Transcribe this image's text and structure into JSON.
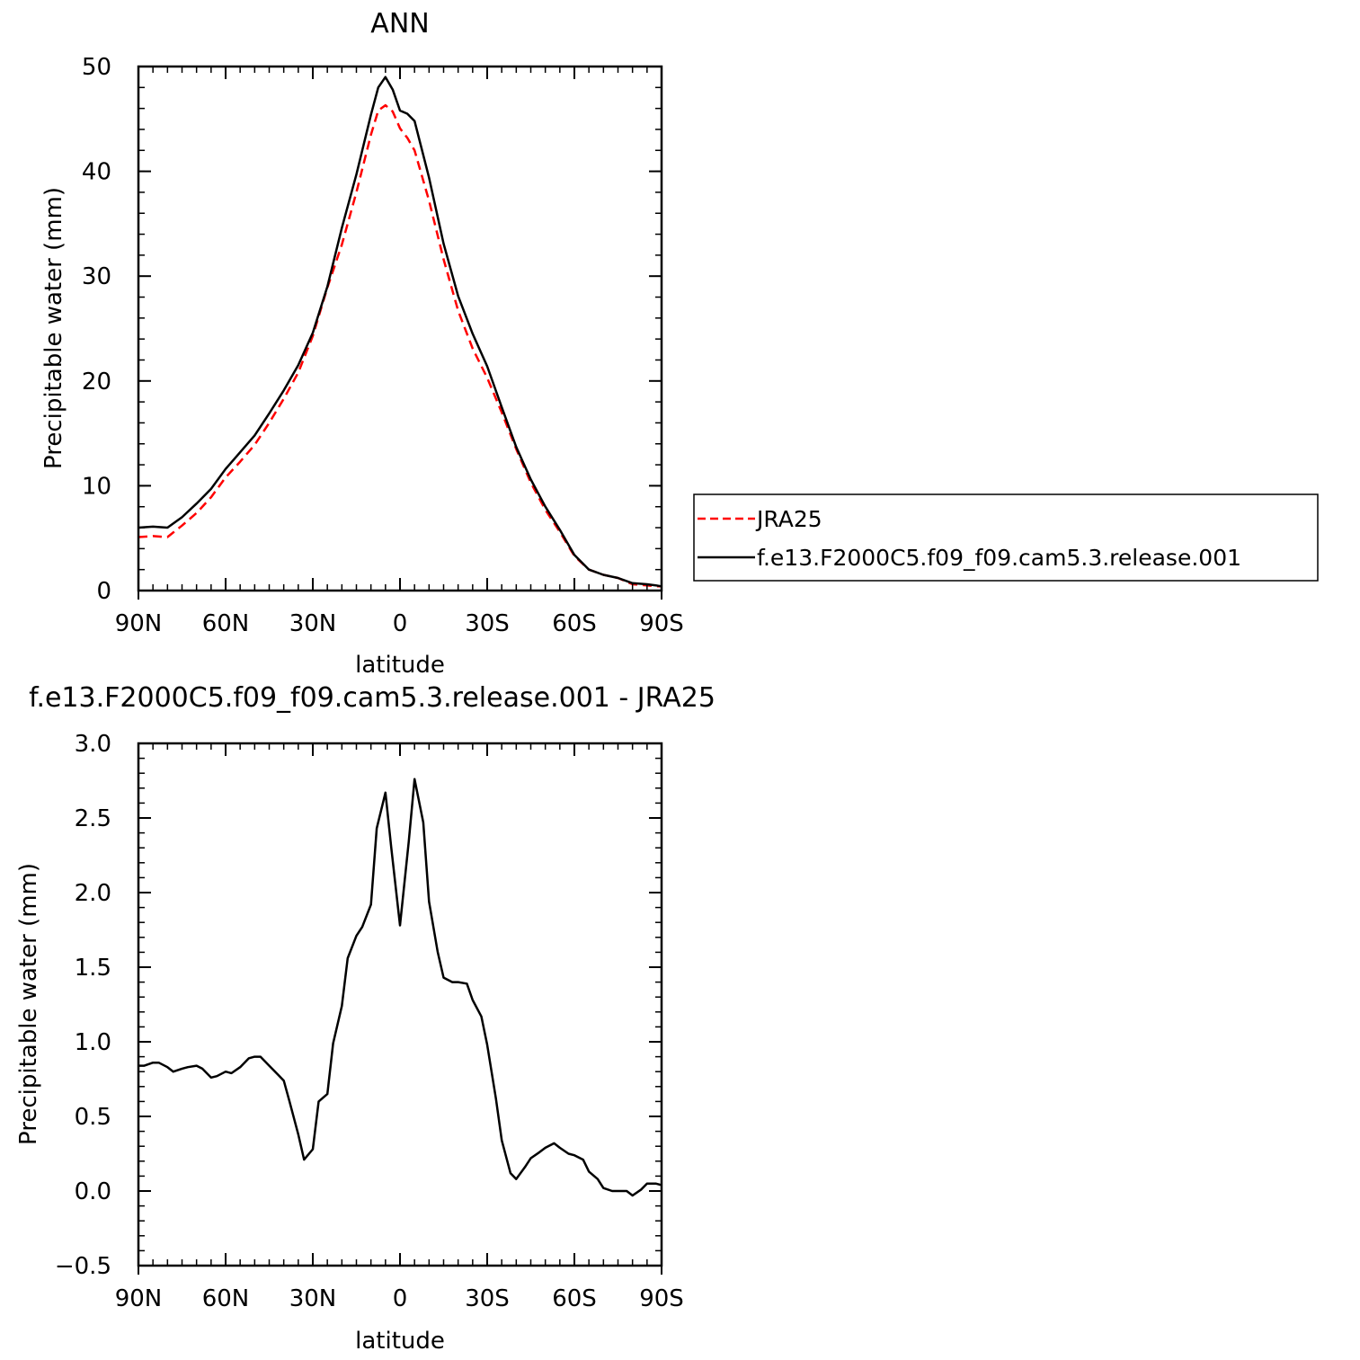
{
  "chart_data": [
    {
      "type": "line",
      "title": "ANN",
      "xlabel": "latitude",
      "ylabel": "Precipitable water (mm)",
      "xlim": [
        -90,
        90
      ],
      "ylim": [
        0,
        50
      ],
      "xticks": [
        {
          "value": -90,
          "label": "90N"
        },
        {
          "value": -60,
          "label": "60N"
        },
        {
          "value": -30,
          "label": "30N"
        },
        {
          "value": 0,
          "label": "0"
        },
        {
          "value": 30,
          "label": "30S"
        },
        {
          "value": 60,
          "label": "60S"
        },
        {
          "value": 90,
          "label": "90S"
        }
      ],
      "yticks": [
        {
          "value": 0,
          "label": "0"
        },
        {
          "value": 10,
          "label": "10"
        },
        {
          "value": 20,
          "label": "20"
        },
        {
          "value": 30,
          "label": "30"
        },
        {
          "value": 40,
          "label": "40"
        },
        {
          "value": 50,
          "label": "50"
        }
      ],
      "grid": false,
      "legend_position": "right",
      "series": [
        {
          "name": "JRA25",
          "color": "#ff0000",
          "dash": "dashed",
          "x": [
            -90,
            -85,
            -80,
            -75,
            -70,
            -65,
            -60,
            -55,
            -50,
            -45,
            -40,
            -35,
            -30,
            -25,
            -20,
            -15,
            -10,
            -7.5,
            -5,
            -2.5,
            0,
            2.5,
            5,
            10,
            15,
            20,
            25,
            30,
            35,
            40,
            45,
            50,
            55,
            60,
            65,
            70,
            75,
            80,
            85,
            88,
            90
          ],
          "y": [
            5.1,
            5.2,
            5.1,
            6.2,
            7.4,
            8.9,
            10.8,
            12.3,
            13.9,
            16.0,
            18.3,
            20.8,
            24.3,
            28.9,
            33.0,
            38.0,
            43.5,
            45.8,
            46.3,
            45.7,
            44.1,
            43.2,
            42.0,
            37.2,
            31.6,
            26.7,
            23.1,
            20.3,
            17.0,
            13.5,
            10.3,
            7.7,
            5.6,
            3.3,
            2.0,
            1.5,
            1.2,
            0.6,
            0.5,
            0.4,
            0.4
          ]
        },
        {
          "name": "f.e13.F2000C5.f09_f09.cam5.3.release.001",
          "color": "#000000",
          "dash": "solid",
          "x": [
            -90,
            -85,
            -80,
            -75,
            -70,
            -65,
            -60,
            -55,
            -50,
            -45,
            -40,
            -35,
            -30,
            -25,
            -20,
            -15,
            -10,
            -7.5,
            -5,
            -2.5,
            0,
            2.5,
            5,
            10,
            15,
            20,
            25,
            30,
            35,
            40,
            45,
            50,
            55,
            60,
            65,
            70,
            75,
            80,
            85,
            88,
            90
          ],
          "y": [
            6.0,
            6.1,
            6.0,
            7.0,
            8.3,
            9.7,
            11.6,
            13.2,
            14.8,
            16.9,
            19.1,
            21.5,
            24.6,
            29.0,
            34.6,
            39.7,
            45.4,
            48.0,
            49.0,
            47.8,
            45.8,
            45.5,
            44.8,
            39.4,
            33.1,
            28.1,
            24.5,
            21.4,
            17.5,
            13.7,
            10.6,
            8.0,
            5.8,
            3.4,
            2.0,
            1.5,
            1.2,
            0.7,
            0.6,
            0.5,
            0.4
          ]
        }
      ]
    },
    {
      "type": "line",
      "title": "f.e13.F2000C5.f09_f09.cam5.3.release.001  -  JRA25",
      "xlabel": "latitude",
      "ylabel": "Precipitable water (mm)",
      "xlim": [
        -90,
        90
      ],
      "ylim": [
        -0.5,
        3.0
      ],
      "xticks": [
        {
          "value": -90,
          "label": "90N"
        },
        {
          "value": -60,
          "label": "60N"
        },
        {
          "value": -30,
          "label": "30N"
        },
        {
          "value": 0,
          "label": "0"
        },
        {
          "value": 30,
          "label": "30S"
        },
        {
          "value": 60,
          "label": "60S"
        },
        {
          "value": 90,
          "label": "90S"
        }
      ],
      "yticks": [
        {
          "value": -0.5,
          "label": "-0.5"
        },
        {
          "value": 0.0,
          "label": "0.0"
        },
        {
          "value": 0.5,
          "label": "0.5"
        },
        {
          "value": 1.0,
          "label": "1.0"
        },
        {
          "value": 1.5,
          "label": "1.5"
        },
        {
          "value": 2.0,
          "label": "2.0"
        },
        {
          "value": 2.5,
          "label": "2.5"
        },
        {
          "value": 3.0,
          "label": "3.0"
        }
      ],
      "grid": false,
      "series": [
        {
          "color": "#000000",
          "dash": "solid",
          "x": [
            -90,
            -88,
            -85,
            -83,
            -80,
            -78,
            -75,
            -73,
            -70,
            -68,
            -65,
            -63,
            -60,
            -58,
            -55,
            -52,
            -50,
            -48,
            -45,
            -42,
            -40,
            -38,
            -35,
            -33,
            -30,
            -28,
            -25,
            -23,
            -20,
            -18,
            -15,
            -13,
            -10,
            -8,
            -5,
            -3,
            0,
            3,
            5,
            8,
            10,
            13,
            15,
            18,
            20,
            23,
            25,
            28,
            30,
            33,
            35,
            38,
            40,
            43,
            45,
            48,
            50,
            53,
            55,
            58,
            60,
            63,
            65,
            68,
            70,
            73,
            75,
            78,
            80,
            83,
            85,
            88,
            90
          ],
          "y": [
            0.84,
            0.84,
            0.86,
            0.86,
            0.83,
            0.8,
            0.82,
            0.83,
            0.84,
            0.82,
            0.76,
            0.77,
            0.8,
            0.79,
            0.83,
            0.89,
            0.9,
            0.9,
            0.84,
            0.78,
            0.74,
            0.6,
            0.38,
            0.21,
            0.28,
            0.6,
            0.65,
            0.99,
            1.24,
            1.56,
            1.71,
            1.77,
            1.92,
            2.43,
            2.67,
            2.3,
            1.78,
            2.34,
            2.76,
            2.47,
            1.94,
            1.6,
            1.43,
            1.4,
            1.4,
            1.39,
            1.28,
            1.17,
            0.98,
            0.62,
            0.34,
            0.12,
            0.08,
            0.16,
            0.22,
            0.26,
            0.29,
            0.32,
            0.29,
            0.25,
            0.24,
            0.21,
            0.13,
            0.08,
            0.02,
            0.0,
            0.0,
            0.0,
            -0.03,
            0.01,
            0.05,
            0.05,
            0.04
          ]
        }
      ]
    }
  ]
}
